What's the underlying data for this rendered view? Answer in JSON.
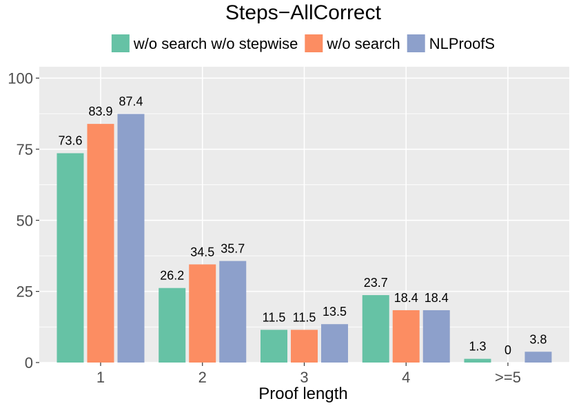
{
  "chart_data": {
    "type": "bar",
    "title": "Steps−AllCorrect",
    "xlabel": "Proof length",
    "ylabel": "",
    "categories": [
      "1",
      "2",
      "3",
      "4",
      ">=5"
    ],
    "ylim": [
      0,
      104
    ],
    "yticks": [
      0,
      25,
      50,
      75,
      100
    ],
    "grid": true,
    "legend_position": "top",
    "panel_background": "#ebebeb",
    "series": [
      {
        "name": "w/o search w/o stepwise",
        "color": "#66c2a5",
        "values": [
          73.6,
          26.2,
          11.5,
          23.7,
          1.3
        ],
        "labels": [
          "73.6",
          "26.2",
          "11.5",
          "23.7",
          "1.3"
        ]
      },
      {
        "name": "w/o search",
        "color": "#fc8d62",
        "values": [
          83.9,
          34.5,
          11.5,
          18.4,
          0
        ],
        "labels": [
          "83.9",
          "34.5",
          "11.5",
          "18.4",
          "0"
        ]
      },
      {
        "name": "NLProofS",
        "color": "#8da0cb",
        "values": [
          87.4,
          35.7,
          13.5,
          18.4,
          3.8
        ],
        "labels": [
          "87.4",
          "35.7",
          "13.5",
          "18.4",
          "3.8"
        ]
      }
    ]
  }
}
